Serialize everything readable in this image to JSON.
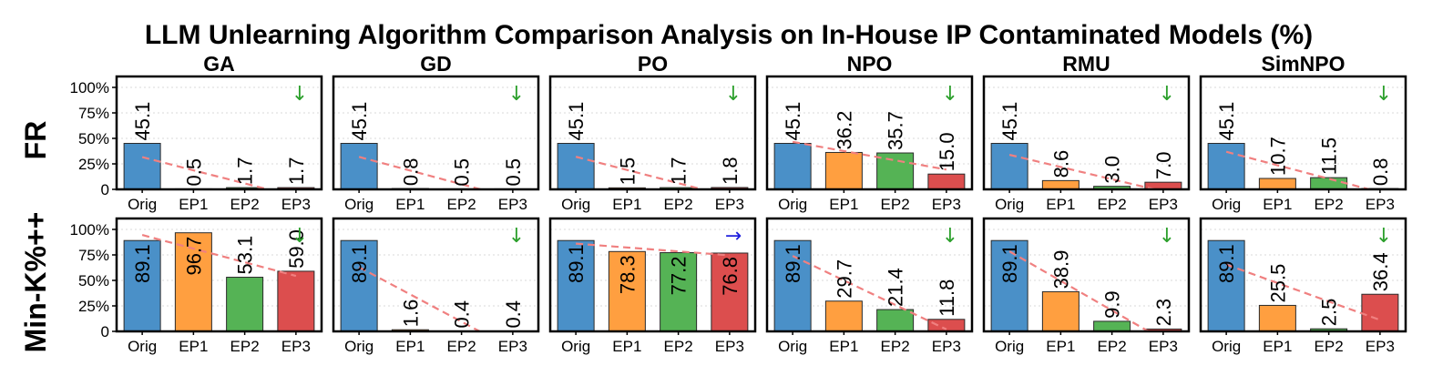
{
  "figure": {
    "title": "LLM Unlearning Algorithm Comparison Analysis on In-House IP Contaminated Models (%)"
  },
  "chart_data": {
    "type": "bar",
    "title": "LLM Unlearning Algorithm Comparison Analysis on In-House IP Contaminated Models (%)",
    "categories": [
      "Orig",
      "EP1",
      "EP2",
      "EP3"
    ],
    "bar_colors": [
      "#4a90c8",
      "#ff9f40",
      "#55b355",
      "#dc4e4e"
    ],
    "trend_color": "#f08080",
    "ylim": [
      0,
      100
    ],
    "yticks": [
      "0",
      "25%",
      "50%",
      "75%",
      "100%"
    ],
    "columns": [
      "GA",
      "GD",
      "PO",
      "NPO",
      "RMU",
      "SimNPO"
    ],
    "rows": [
      "FR",
      "Min-K%++"
    ],
    "panels": [
      {
        "row": "FR",
        "col": "GA",
        "values": [
          45.1,
          0.5,
          1.7,
          1.7
        ],
        "labels": [
          "45.1",
          "0.5",
          "1.7",
          "1.7"
        ],
        "arrow": "↓",
        "arrow_color": "#2ca02c"
      },
      {
        "row": "FR",
        "col": "GD",
        "values": [
          45.1,
          0.8,
          0.5,
          0.5
        ],
        "labels": [
          "45.1",
          "0.8",
          "0.5",
          "0.5"
        ],
        "arrow": "↓",
        "arrow_color": "#2ca02c"
      },
      {
        "row": "FR",
        "col": "PO",
        "values": [
          45.1,
          1.5,
          1.7,
          1.8
        ],
        "labels": [
          "45.1",
          "1.5",
          "1.7",
          "1.8"
        ],
        "arrow": "↓",
        "arrow_color": "#2ca02c"
      },
      {
        "row": "FR",
        "col": "NPO",
        "values": [
          45.1,
          36.2,
          35.7,
          15.0
        ],
        "labels": [
          "45.1",
          "36.2",
          "35.7",
          "15.0"
        ],
        "arrow": "↓",
        "arrow_color": "#2ca02c"
      },
      {
        "row": "FR",
        "col": "RMU",
        "values": [
          45.1,
          8.6,
          3.0,
          7.0
        ],
        "labels": [
          "45.1",
          "8.6",
          "3.0",
          "7.0"
        ],
        "arrow": "↓",
        "arrow_color": "#2ca02c"
      },
      {
        "row": "FR",
        "col": "SimNPO",
        "values": [
          45.1,
          10.7,
          11.5,
          0.8
        ],
        "labels": [
          "45.1",
          "10.7",
          "11.5",
          "0.8"
        ],
        "arrow": "↓",
        "arrow_color": "#2ca02c"
      },
      {
        "row": "Min-K%++",
        "col": "GA",
        "values": [
          89.1,
          96.7,
          53.1,
          59.0
        ],
        "labels": [
          "89.1",
          "96.7",
          "53.1",
          "59.0"
        ],
        "arrow": "↓",
        "arrow_color": "#2ca02c"
      },
      {
        "row": "Min-K%++",
        "col": "GD",
        "values": [
          89.1,
          1.6,
          0.4,
          0.4
        ],
        "labels": [
          "89.1",
          "1.6",
          "0.4",
          "0.4"
        ],
        "arrow": "↓",
        "arrow_color": "#2ca02c"
      },
      {
        "row": "Min-K%++",
        "col": "PO",
        "values": [
          89.1,
          78.3,
          77.2,
          76.8
        ],
        "labels": [
          "89.1",
          "78.3",
          "77.2",
          "76.8"
        ],
        "arrow": "→",
        "arrow_color": "#1f1fdd"
      },
      {
        "row": "Min-K%++",
        "col": "NPO",
        "values": [
          89.1,
          29.7,
          21.4,
          11.8
        ],
        "labels": [
          "89.1",
          "29.7",
          "21.4",
          "11.8"
        ],
        "arrow": "↓",
        "arrow_color": "#2ca02c"
      },
      {
        "row": "Min-K%++",
        "col": "RMU",
        "values": [
          89.1,
          38.9,
          9.9,
          2.3
        ],
        "labels": [
          "89.1",
          "38.9",
          "9.9",
          "2.3"
        ],
        "arrow": "↓",
        "arrow_color": "#2ca02c"
      },
      {
        "row": "Min-K%++",
        "col": "SimNPO",
        "values": [
          89.1,
          25.5,
          2.5,
          36.4
        ],
        "labels": [
          "89.1",
          "25.5",
          "2.5",
          "36.4"
        ],
        "arrow": "↓",
        "arrow_color": "#2ca02c"
      }
    ]
  }
}
